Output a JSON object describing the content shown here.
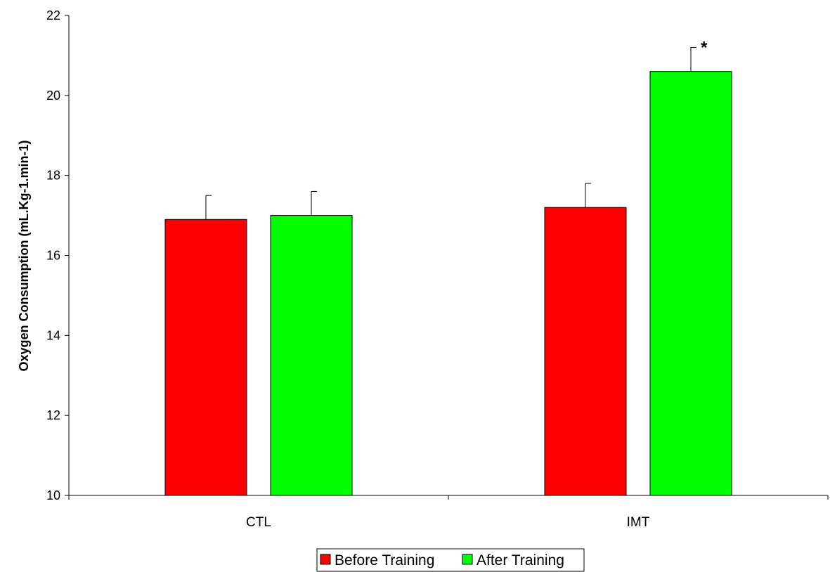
{
  "chart_data": {
    "type": "bar",
    "title": "",
    "xlabel": "",
    "ylabel": "Oxygen Consumption (mL.Kg-1.min-1)",
    "categories": [
      "CTL",
      "IMT"
    ],
    "series": [
      {
        "name": "Before Training",
        "color": "#ff0000",
        "values": [
          16.9,
          17.2
        ],
        "errors": [
          0.6,
          0.6
        ]
      },
      {
        "name": "After Training",
        "color": "#00ff00",
        "values": [
          17.0,
          20.6
        ],
        "errors": [
          0.6,
          0.6
        ]
      }
    ],
    "ylim": [
      10,
      22
    ],
    "yticks": [
      "10",
      "12",
      "14",
      "16",
      "18",
      "20",
      "22"
    ],
    "annotations": [
      {
        "text": "*",
        "category": "IMT",
        "series": "After Training"
      }
    ],
    "grid": false,
    "legend_position": "bottom-center"
  }
}
